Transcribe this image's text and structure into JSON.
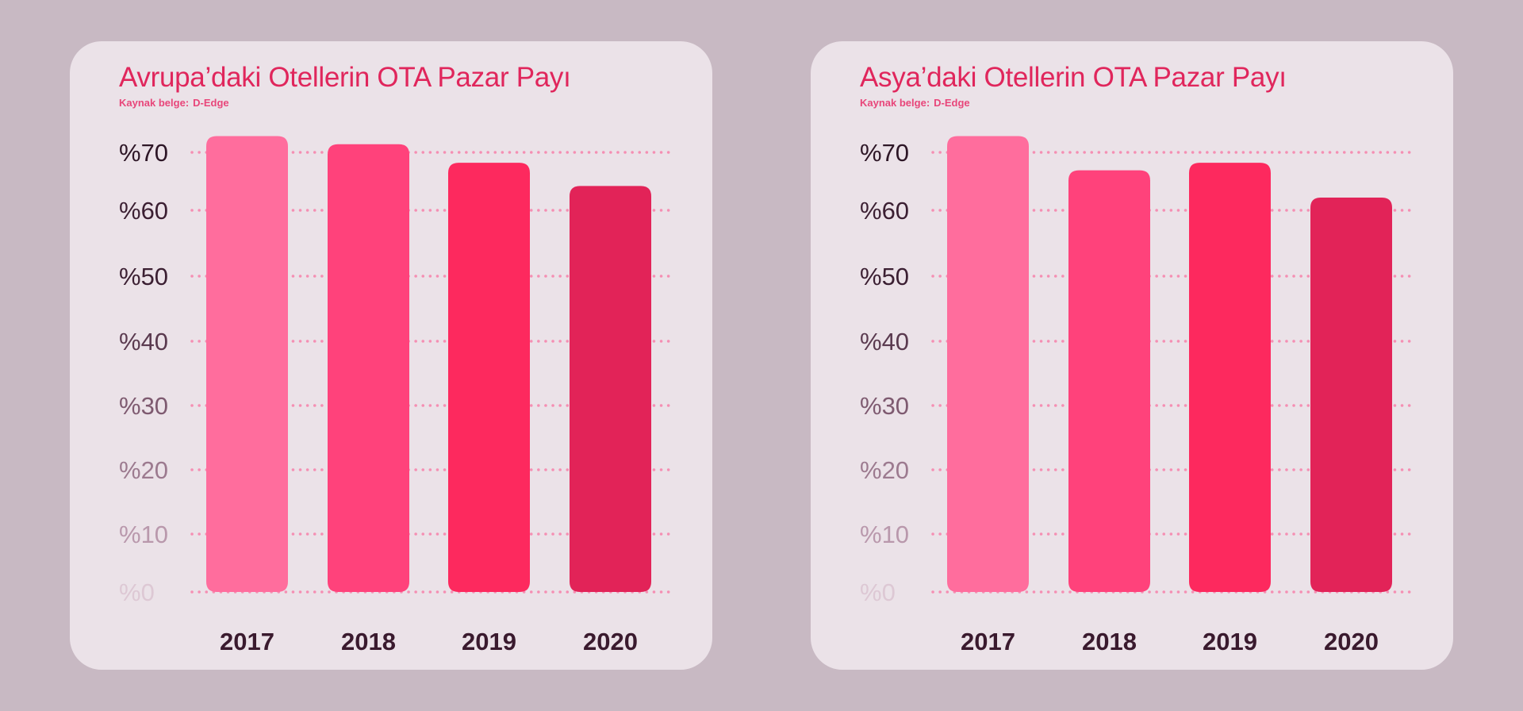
{
  "chart_data": [
    {
      "type": "bar",
      "title": "Avrupa’daki Otellerin OTA Pazar Payı",
      "source_label": "Kaynak belge:",
      "source_value": "D-Edge",
      "categories": [
        "2017",
        "2018",
        "2019",
        "2020"
      ],
      "values": [
        72.8,
        71.4,
        68.2,
        64.2
      ],
      "y_ticks": [
        "%0",
        "%10",
        "%20",
        "%30",
        "%40",
        "%50",
        "%60",
        "%70"
      ],
      "ylim": [
        0,
        70
      ],
      "grid": true,
      "bar_colors": [
        "#ff6d9d",
        "#ff427b",
        "#fd295e",
        "#e22358"
      ],
      "tick_colors": [
        "#ddc8d4",
        "#b998ac",
        "#9c7a8f",
        "#7e5a70",
        "#5a3a4f",
        "#3b1f32",
        "#3b1f32",
        "#2d1626"
      ]
    },
    {
      "type": "bar",
      "title": "Asya’daki Otellerin OTA Pazar Payı",
      "source_label": "Kaynak belge:",
      "source_value": "D-Edge",
      "categories": [
        "2017",
        "2018",
        "2019",
        "2020"
      ],
      "values": [
        72.8,
        66.9,
        68.2,
        62.2
      ],
      "y_ticks": [
        "%0",
        "%10",
        "%20",
        "%30",
        "%40",
        "%50",
        "%60",
        "%70"
      ],
      "ylim": [
        0,
        70
      ],
      "grid": true,
      "bar_colors": [
        "#ff6d9d",
        "#ff427b",
        "#fd295e",
        "#e22358"
      ],
      "tick_colors": [
        "#ddc8d4",
        "#b998ac",
        "#9c7a8f",
        "#7e5a70",
        "#5a3a4f",
        "#3b1f32",
        "#3b1f32",
        "#2d1626"
      ]
    }
  ]
}
